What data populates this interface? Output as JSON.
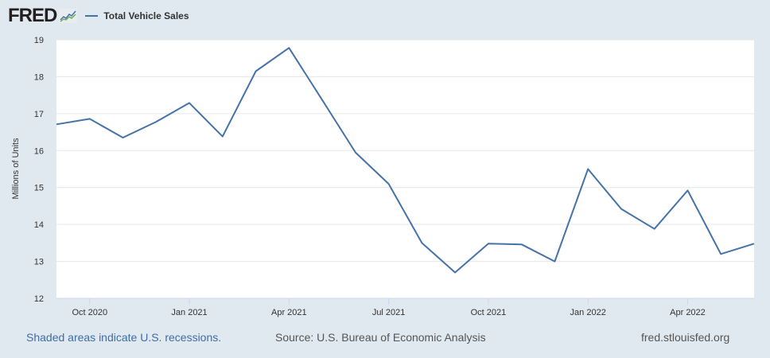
{
  "header": {
    "logo": "FRED",
    "logo_icon": "fred-chart-icon",
    "legend_label": "Total Vehicle Sales",
    "series_color": "#4572a7"
  },
  "footer": {
    "recession_note": "Shaded areas indicate U.S. recessions.",
    "source": "Source: U.S. Bureau of Economic Analysis",
    "site": "fred.stlouisfed.org"
  },
  "chart_data": {
    "type": "line",
    "title": "Total Vehicle Sales",
    "xlabel": "",
    "ylabel": "Millions of Units",
    "ylim": [
      12,
      19
    ],
    "yticks": [
      12,
      13,
      14,
      15,
      16,
      17,
      18,
      19
    ],
    "grid": true,
    "legend_position": "top-left",
    "xtick_labels": [
      "Oct 2020",
      "Jan 2021",
      "Apr 2021",
      "Jul 2021",
      "Oct 2021",
      "Jan 2022",
      "Apr 2022"
    ],
    "x": [
      "2020-09",
      "2020-10",
      "2020-11",
      "2020-12",
      "2021-01",
      "2021-02",
      "2021-03",
      "2021-04",
      "2021-05",
      "2021-06",
      "2021-07",
      "2021-08",
      "2021-09",
      "2021-10",
      "2021-11",
      "2021-12",
      "2022-01",
      "2022-02",
      "2022-03",
      "2022-04",
      "2022-05",
      "2022-06"
    ],
    "series": [
      {
        "name": "Total Vehicle Sales",
        "color": "#4572a7",
        "values": [
          16.71,
          16.86,
          16.35,
          16.78,
          17.29,
          16.38,
          18.15,
          18.78,
          17.37,
          15.95,
          15.1,
          13.5,
          12.7,
          13.48,
          13.46,
          13.0,
          15.5,
          14.42,
          13.88,
          14.92,
          13.2,
          13.48
        ]
      }
    ]
  }
}
